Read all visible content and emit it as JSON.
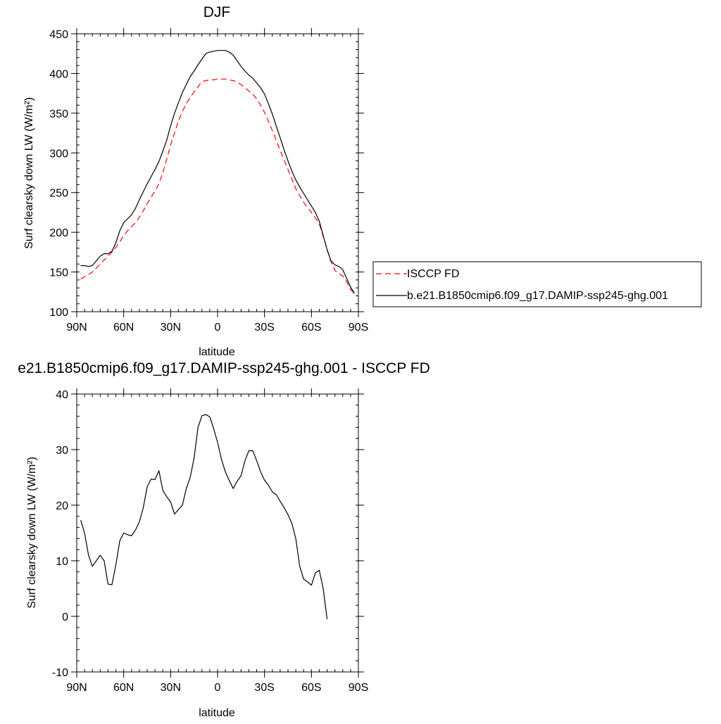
{
  "colors": {
    "model": "#000000",
    "obs": "#ff0000"
  },
  "chart_data": [
    {
      "type": "line",
      "title": "DJF",
      "xlabel": "latitude",
      "ylabel": "Surf clearsky down LW (W/m²)",
      "xlim": [
        -90,
        90
      ],
      "ylim": [
        100,
        450
      ],
      "x_ticks": [
        {
          "value": -90,
          "label": "90N"
        },
        {
          "value": -60,
          "label": "60N"
        },
        {
          "value": -30,
          "label": "30N"
        },
        {
          "value": 0,
          "label": "0"
        },
        {
          "value": 30,
          "label": "30S"
        },
        {
          "value": 60,
          "label": "60S"
        },
        {
          "value": 90,
          "label": "90S"
        }
      ],
      "y_ticks": [
        {
          "value": 100,
          "label": "100"
        },
        {
          "value": 150,
          "label": "150"
        },
        {
          "value": 200,
          "label": "200"
        },
        {
          "value": 250,
          "label": "250"
        },
        {
          "value": 300,
          "label": "300"
        },
        {
          "value": 350,
          "label": "350"
        },
        {
          "value": 400,
          "label": "400"
        },
        {
          "value": 450,
          "label": "450"
        }
      ],
      "legend": "right",
      "series": [
        {
          "name": "ISCCP FD",
          "style": "dashed",
          "color": "#ff0000",
          "points": [
            [
              -87.5,
              141
            ],
            [
              -85,
              144
            ],
            [
              -82.5,
              147
            ],
            [
              -80,
              150
            ],
            [
              -77.5,
              155
            ],
            [
              -75,
              160
            ],
            [
              -72.5,
              165
            ],
            [
              -70,
              170
            ],
            [
              -67.5,
              175
            ],
            [
              -65,
              181
            ],
            [
              -62.5,
              188
            ],
            [
              -60,
              196
            ],
            [
              -57.5,
              202
            ],
            [
              -55,
              207
            ],
            [
              -52.5,
              212
            ],
            [
              -50,
              219
            ],
            [
              -47.5,
              227
            ],
            [
              -45,
              236
            ],
            [
              -42.5,
              244
            ],
            [
              -40,
              252
            ],
            [
              -37.5,
              261
            ],
            [
              -35,
              275
            ],
            [
              -32.5,
              292
            ],
            [
              -30,
              310
            ],
            [
              -27.5,
              325
            ],
            [
              -25,
              340
            ],
            [
              -22.5,
              352
            ],
            [
              -20,
              362
            ],
            [
              -17.5,
              370
            ],
            [
              -15,
              377
            ],
            [
              -12.5,
              383
            ],
            [
              -10,
              390
            ],
            [
              -7.5,
              391
            ],
            [
              -5,
              392
            ],
            [
              -2.5,
              392
            ],
            [
              0,
              393
            ],
            [
              2.5,
              393
            ],
            [
              5,
              393
            ],
            [
              7.5,
              392
            ],
            [
              10,
              391
            ],
            [
              12.5,
              389
            ],
            [
              15,
              386
            ],
            [
              17.5,
              382
            ],
            [
              20,
              378
            ],
            [
              22.5,
              374
            ],
            [
              25,
              368
            ],
            [
              27.5,
              360
            ],
            [
              30,
              351
            ],
            [
              32.5,
              340
            ],
            [
              35,
              328
            ],
            [
              37.5,
              316
            ],
            [
              40,
              303
            ],
            [
              42.5,
              291
            ],
            [
              45,
              279
            ],
            [
              47.5,
              267
            ],
            [
              50,
              255
            ],
            [
              52.5,
              246
            ],
            [
              55,
              238
            ],
            [
              57.5,
              231
            ],
            [
              60,
              225
            ],
            [
              62.5,
              218
            ],
            [
              65,
              211
            ],
            [
              67.5,
              195
            ],
            [
              70,
              178
            ],
            [
              72.5,
              163
            ],
            [
              75,
              152
            ],
            [
              77.5,
              148
            ],
            [
              80,
              145
            ],
            [
              82.5,
              138
            ],
            [
              85,
              128
            ],
            [
              87.5,
              123
            ]
          ]
        },
        {
          "name": "b.e21.B1850cmip6.f09_g17.DAMIP-ssp245-ghg.001",
          "style": "solid",
          "color": "#000000",
          "points": [
            [
              -87.5,
              158
            ],
            [
              -85,
              158
            ],
            [
              -82.5,
              157
            ],
            [
              -80,
              158
            ],
            [
              -77.5,
              164
            ],
            [
              -75,
              170
            ],
            [
              -72.5,
              173
            ],
            [
              -70,
              173
            ],
            [
              -67.5,
              176
            ],
            [
              -65,
              187
            ],
            [
              -62.5,
              202
            ],
            [
              -60,
              212
            ],
            [
              -57.5,
              217
            ],
            [
              -55,
              222
            ],
            [
              -52.5,
              230
            ],
            [
              -50,
              241
            ],
            [
              -47.5,
              251
            ],
            [
              -45,
              261
            ],
            [
              -42.5,
              270
            ],
            [
              -40,
              279
            ],
            [
              -37.5,
              289
            ],
            [
              -35,
              302
            ],
            [
              -32.5,
              316
            ],
            [
              -30,
              334
            ],
            [
              -27.5,
              350
            ],
            [
              -25,
              363
            ],
            [
              -22.5,
              376
            ],
            [
              -20,
              386
            ],
            [
              -17.5,
              396
            ],
            [
              -15,
              403
            ],
            [
              -12.5,
              411
            ],
            [
              -10,
              418
            ],
            [
              -7.5,
              425
            ],
            [
              -5,
              427
            ],
            [
              -2.5,
              428
            ],
            [
              0,
              429
            ],
            [
              2.5,
              429
            ],
            [
              5,
              429
            ],
            [
              7.5,
              427
            ],
            [
              10,
              423
            ],
            [
              12.5,
              416
            ],
            [
              15,
              409
            ],
            [
              17.5,
              403
            ],
            [
              20,
              398
            ],
            [
              22.5,
              394
            ],
            [
              25,
              388
            ],
            [
              27.5,
              382
            ],
            [
              30,
              374
            ],
            [
              32.5,
              362
            ],
            [
              35,
              349
            ],
            [
              37.5,
              334
            ],
            [
              40,
              319
            ],
            [
              42.5,
              304
            ],
            [
              45,
              290
            ],
            [
              47.5,
              277
            ],
            [
              50,
              266
            ],
            [
              52.5,
              257
            ],
            [
              55,
              249
            ],
            [
              57.5,
              241
            ],
            [
              60,
              233
            ],
            [
              62.5,
              225
            ],
            [
              65,
              214
            ],
            [
              67.5,
              196
            ],
            [
              70,
              178
            ],
            [
              72.5,
              164
            ],
            [
              75,
              159
            ],
            [
              77.5,
              157
            ],
            [
              80,
              153
            ],
            [
              82.5,
              142
            ],
            [
              85,
              131
            ],
            [
              87.5,
              123
            ]
          ]
        }
      ]
    },
    {
      "type": "line",
      "title": "e21.B1850cmip6.f09_g17.DAMIP-ssp245-ghg.001 - ISCCP FD",
      "xlabel": "latitude",
      "ylabel": "Surf clearsky down LW (W/m²)",
      "xlim": [
        -90,
        90
      ],
      "ylim": [
        -10,
        40
      ],
      "x_ticks": [
        {
          "value": -90,
          "label": "90N"
        },
        {
          "value": -60,
          "label": "60N"
        },
        {
          "value": -30,
          "label": "30N"
        },
        {
          "value": 0,
          "label": "0"
        },
        {
          "value": 30,
          "label": "30S"
        },
        {
          "value": 60,
          "label": "60S"
        },
        {
          "value": 90,
          "label": "90S"
        }
      ],
      "y_ticks": [
        {
          "value": -10,
          "label": "-10"
        },
        {
          "value": 0,
          "label": "0"
        },
        {
          "value": 10,
          "label": "10"
        },
        {
          "value": 20,
          "label": "20"
        },
        {
          "value": 30,
          "label": "30"
        },
        {
          "value": 40,
          "label": "40"
        }
      ],
      "series": [
        {
          "style": "solid",
          "color": "#000000",
          "points": [
            [
              -87.5,
              17.3
            ],
            [
              -85,
              15
            ],
            [
              -82.5,
              11
            ],
            [
              -80,
              9
            ],
            [
              -77.5,
              10
            ],
            [
              -75,
              11
            ],
            [
              -72.5,
              10
            ],
            [
              -70,
              5.8
            ],
            [
              -67.5,
              5.7
            ],
            [
              -65,
              9.3
            ],
            [
              -62.5,
              13.6
            ],
            [
              -60,
              15
            ],
            [
              -57.5,
              14.7
            ],
            [
              -55,
              14.5
            ],
            [
              -52.5,
              15.5
            ],
            [
              -50,
              17
            ],
            [
              -47.5,
              19.5
            ],
            [
              -45,
              23.3
            ],
            [
              -42.5,
              24.7
            ],
            [
              -40,
              24.6
            ],
            [
              -37.5,
              26.2
            ],
            [
              -35,
              22.7
            ],
            [
              -32.5,
              21.5
            ],
            [
              -30,
              20.6
            ],
            [
              -27.5,
              18.4
            ],
            [
              -25,
              19.2
            ],
            [
              -22.5,
              20
            ],
            [
              -20,
              23
            ],
            [
              -17.5,
              25
            ],
            [
              -15,
              28.5
            ],
            [
              -12.5,
              34
            ],
            [
              -10,
              36.1
            ],
            [
              -7.5,
              36.3
            ],
            [
              -5,
              35.9
            ],
            [
              -2.5,
              33.8
            ],
            [
              0,
              31.3
            ],
            [
              2.5,
              28.2
            ],
            [
              5,
              26
            ],
            [
              7.5,
              24.4
            ],
            [
              10,
              23
            ],
            [
              12.5,
              24.3
            ],
            [
              15,
              25.3
            ],
            [
              17.5,
              28
            ],
            [
              20,
              29.8
            ],
            [
              22.5,
              29.8
            ],
            [
              25,
              28
            ],
            [
              27.5,
              26
            ],
            [
              30,
              24.5
            ],
            [
              32.5,
              23.6
            ],
            [
              35,
              22.4
            ],
            [
              37.5,
              21.9
            ],
            [
              40,
              20.7
            ],
            [
              42.5,
              19.6
            ],
            [
              45,
              18.3
            ],
            [
              47.5,
              16.7
            ],
            [
              50,
              14
            ],
            [
              52.5,
              9
            ],
            [
              55,
              6.7
            ],
            [
              57.5,
              6.2
            ],
            [
              60,
              5.6
            ],
            [
              62.5,
              7.8
            ],
            [
              65,
              8.3
            ],
            [
              67.5,
              5
            ],
            [
              70,
              -0.5
            ]
          ]
        }
      ]
    }
  ]
}
